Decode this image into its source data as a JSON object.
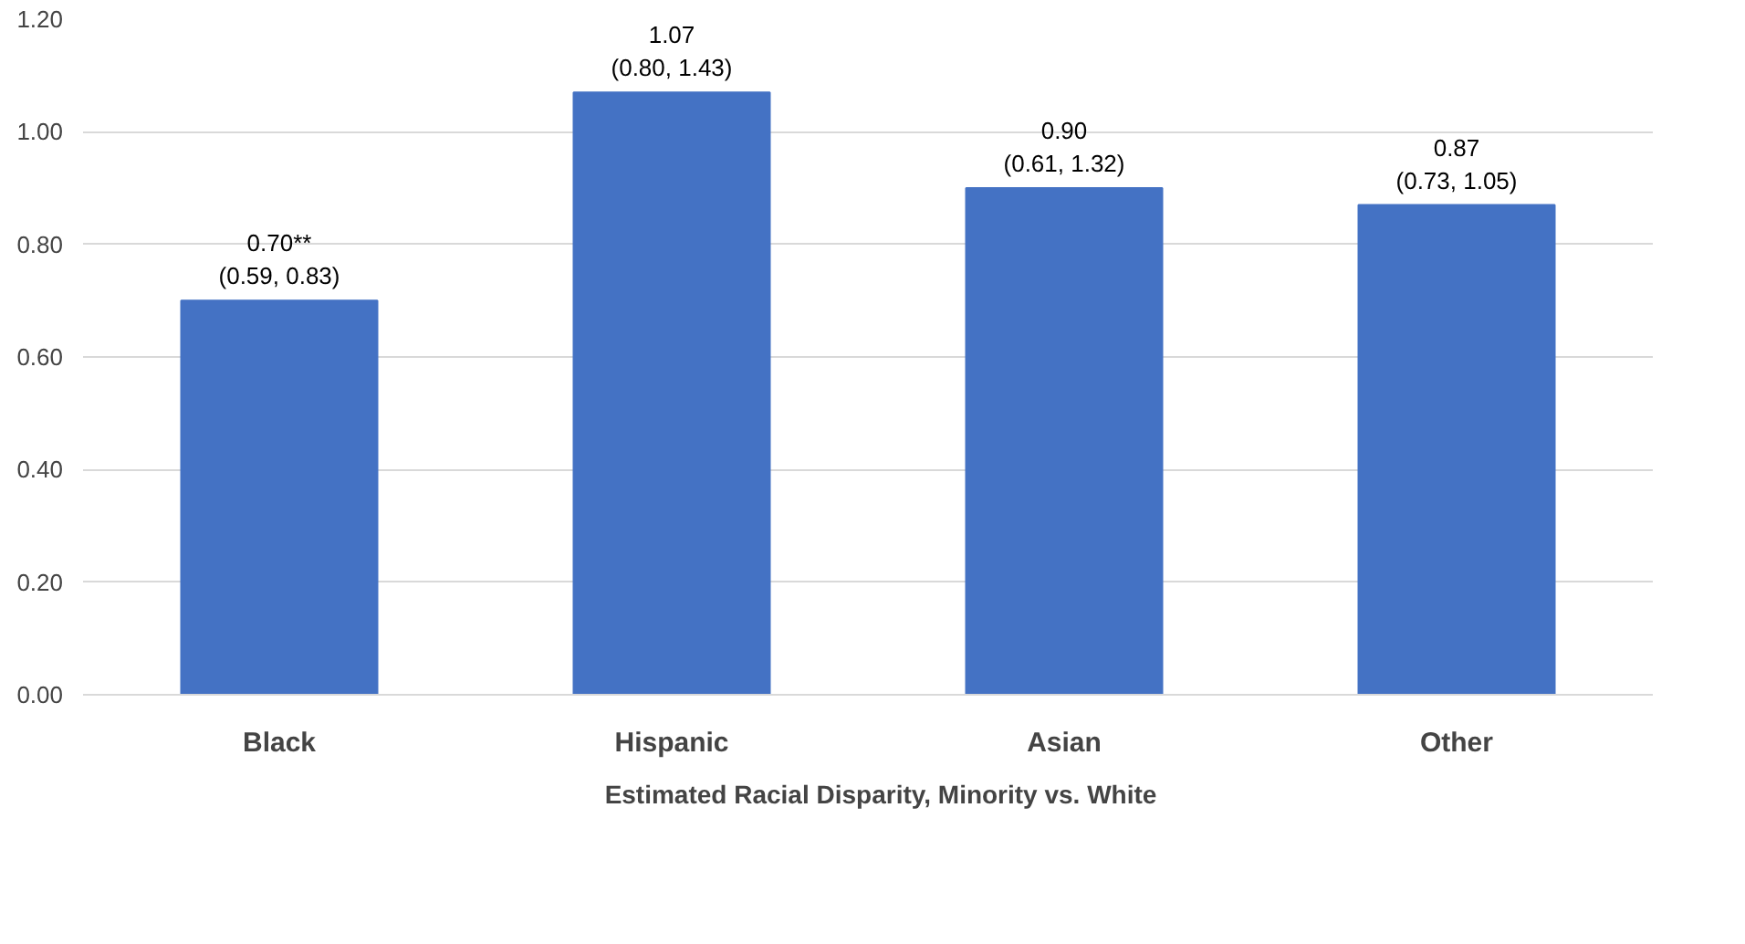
{
  "chart_data": {
    "type": "bar",
    "categories": [
      "Black",
      "Hispanic",
      "Asian",
      "Other"
    ],
    "series": [
      {
        "name": "Estimated Racial Disparity, Minority vs. White",
        "color": "#4472c4",
        "values": [
          0.7,
          1.07,
          0.9,
          0.87
        ],
        "value_labels": [
          "0.70**\n(0.59, 0.83)",
          "1.07\n(0.80, 1.43)",
          "0.90\n(0.61, 1.32)",
          "0.87\n(0.73, 1.05)"
        ]
      }
    ],
    "ylim": [
      0,
      1.2
    ],
    "yticks": [
      {
        "value": 0,
        "label": "0.00"
      },
      {
        "value": 0.2,
        "label": "0.20"
      },
      {
        "value": 0.4,
        "label": "0.40"
      },
      {
        "value": 0.6,
        "label": "0.60"
      },
      {
        "value": 0.8,
        "label": "0.80"
      },
      {
        "value": 1.0,
        "label": "1.00"
      },
      {
        "value": 1.2,
        "label": "1.20"
      }
    ],
    "grid": "y",
    "legend": "bottom"
  }
}
